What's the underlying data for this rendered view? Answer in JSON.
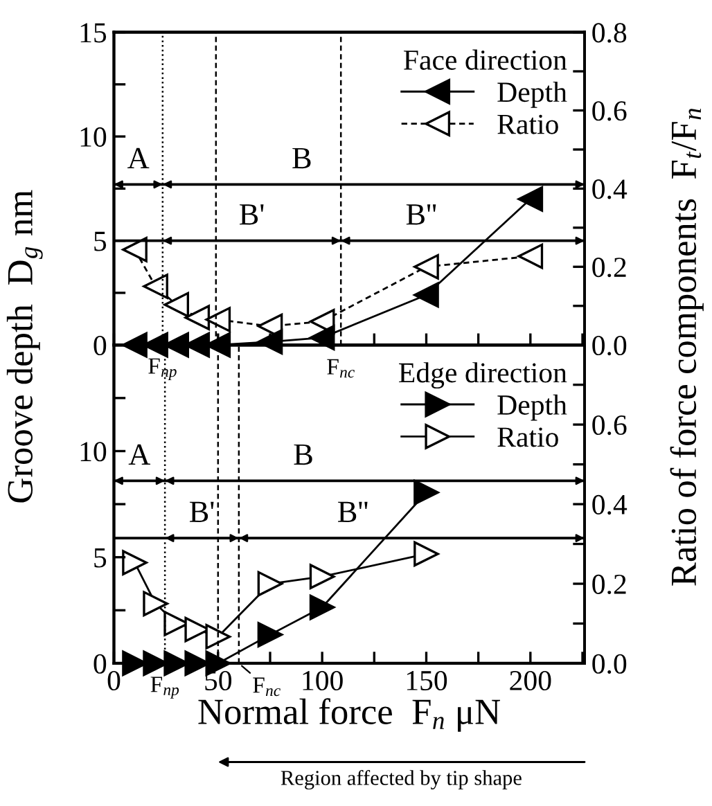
{
  "chart_data": [
    {
      "type": "line",
      "ylabel": "Groove depth  D$_{g}$ nm",
      "y2label": "Ratio of force components  F$_{t}$/F$_{n}$",
      "legend_title": "Face direction",
      "legend": "top right",
      "tick_labels": "y",
      "xlim": [
        0,
        226
      ],
      "ylim": [
        0,
        15
      ],
      "y2lim": [
        0,
        0.8
      ],
      "xticks": [
        0,
        25,
        50,
        75,
        100,
        125,
        150,
        175,
        200,
        225
      ],
      "yticks": [
        0,
        {
          "value": 2.5,
          "label": null
        },
        5,
        {
          "value": 7.5,
          "label": null
        },
        10,
        {
          "value": 12.5,
          "label": null
        },
        15
      ],
      "y2ticks": [
        {
          "value": 0,
          "label": "0.0"
        },
        {
          "value": 0.1,
          "label": null
        },
        {
          "value": 0.2,
          "label": "0.2"
        },
        {
          "value": 0.3,
          "label": null
        },
        {
          "value": 0.4,
          "label": "0.4"
        },
        {
          "value": 0.5,
          "label": null
        },
        {
          "value": 0.6,
          "label": "0.6"
        },
        {
          "value": 0.7,
          "label": null
        },
        {
          "value": 0.8,
          "label": "0.8"
        }
      ],
      "x": [
        10,
        20,
        30,
        40,
        50,
        75,
        100,
        150,
        200
      ],
      "series": [
        {
          "name": "Depth",
          "color": "#000000",
          "marker": "triangle",
          "line_style": "solid",
          "axis": "y",
          "values": [
            0,
            0,
            0,
            0,
            0,
            0.15,
            0.35,
            2.4,
            7.0
          ]
        },
        {
          "name": "Ratio",
          "color": "#000000",
          "marker": "triangle",
          "line_style": "dashed",
          "axis": "y2",
          "values": [
            0.244,
            0.15,
            0.103,
            0.07,
            0.065,
            0.048,
            0.06,
            0.2,
            0.227
          ]
        }
      ],
      "ref_lines": [
        {
          "axis": "x",
          "value": 23.4,
          "line_style": "dotted"
        },
        {
          "axis": "x",
          "value": 49,
          "line_style": "dashed"
        },
        {
          "axis": "x",
          "value": 109,
          "line_style": "dashed"
        },
        {
          "axis": "y",
          "value": 7.7,
          "line_style": "solid"
        },
        {
          "axis": "y",
          "value": 5.0,
          "line_style": "solid"
        }
      ],
      "annotations": [
        "A",
        "B",
        "B'",
        "B''",
        {
          "text": "F$_{np}$",
          "x": 23.4,
          "y": 0
        },
        {
          "text": "F$_{nc}$",
          "x": 109,
          "y": 0
        }
      ]
    },
    {
      "type": "line",
      "xlabel": "Normal force  F$_{n}$ μN",
      "legend_title": "Edge direction",
      "legend": "top right",
      "xlim": [
        0,
        226
      ],
      "ylim": [
        0,
        15
      ],
      "y2lim": [
        0,
        0.8
      ],
      "xticks": [
        0,
        {
          "value": 25,
          "label": null
        },
        50,
        {
          "value": 75,
          "label": null
        },
        100,
        {
          "value": 125,
          "label": null
        },
        150,
        {
          "value": 175,
          "label": null
        },
        200,
        {
          "value": 225,
          "label": null
        }
      ],
      "yticks": [
        0,
        {
          "value": 2.5,
          "label": null
        },
        5,
        {
          "value": 7.5,
          "label": null
        },
        10,
        {
          "value": 12.5,
          "label": null
        }
      ],
      "y2ticks": [
        {
          "value": 0,
          "label": "0.0"
        },
        {
          "value": 0.1,
          "label": null
        },
        {
          "value": 0.2,
          "label": "0.2"
        },
        {
          "value": 0.3,
          "label": null
        },
        {
          "value": 0.4,
          "label": "0.4"
        },
        {
          "value": 0.5,
          "label": null
        },
        {
          "value": 0.6,
          "label": "0.6"
        },
        {
          "value": 0.7,
          "label": null
        }
      ],
      "x": [
        10,
        20,
        30,
        40,
        50,
        75,
        100,
        150
      ],
      "series": [
        {
          "name": "Depth",
          "color": "#000000",
          "marker": "triangle",
          "line_style": "solid",
          "axis": "y",
          "values": [
            0,
            0,
            0,
            0,
            0,
            1.35,
            2.64,
            8.05
          ]
        },
        {
          "name": "Ratio",
          "color": "#000000",
          "marker": "triangle",
          "line_style": "solid",
          "axis": "y2",
          "values": [
            0.253,
            0.15,
            0.1,
            0.085,
            0.067,
            0.2,
            0.218,
            0.275
          ]
        }
      ],
      "ref_lines": [
        {
          "axis": "x",
          "value": 24.5,
          "line_style": "dotted"
        },
        {
          "axis": "x",
          "value": 50,
          "line_style": "dashed"
        },
        {
          "axis": "x",
          "value": 60,
          "line_style": "dashed"
        },
        {
          "axis": "y",
          "value": 8.6,
          "line_style": "solid"
        },
        {
          "axis": "y",
          "value": 5.9,
          "line_style": "solid"
        }
      ],
      "annotations": [
        "A",
        "B",
        "B'",
        "B''",
        {
          "text": "F$_{np}$",
          "x": 24.5,
          "y": 0
        },
        {
          "text": "F$_{nc}$",
          "x": 60,
          "y": 0
        },
        "Region affected by tip shape"
      ]
    }
  ]
}
